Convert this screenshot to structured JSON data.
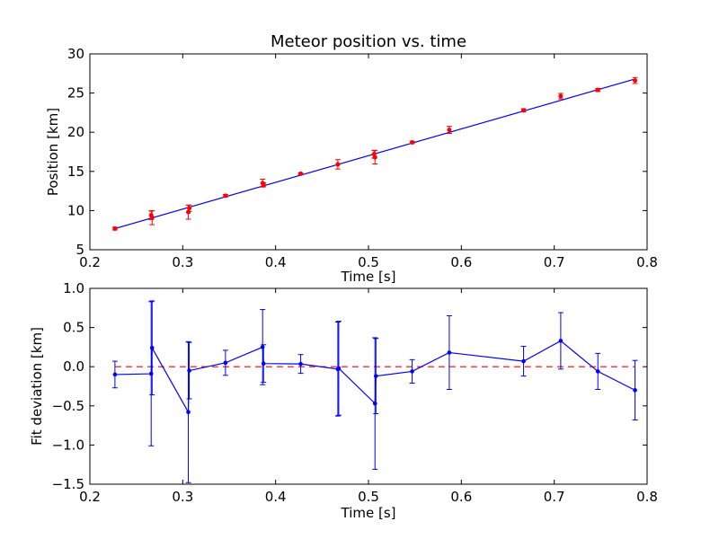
{
  "chart_data": [
    {
      "type": "scatter",
      "title": "Meteor position vs. time",
      "xlabel": "Time [s]",
      "ylabel": "Position [km]",
      "xlim": [
        0.2,
        0.8
      ],
      "ylim": [
        5,
        30
      ],
      "xticks": [
        "0.2",
        "0.3",
        "0.4",
        "0.5",
        "0.6",
        "0.7",
        "0.8"
      ],
      "yticks": [
        "5",
        "10",
        "15",
        "20",
        "25",
        "30"
      ],
      "series": [
        {
          "kind": "fit-line",
          "color": "#0000ff",
          "x": [
            0.227,
            0.787
          ],
          "y": [
            7.7,
            26.8
          ]
        },
        {
          "kind": "points-with-errorbars",
          "color": "#ff0000",
          "x": [
            0.227,
            0.266,
            0.267,
            0.306,
            0.307,
            0.346,
            0.386,
            0.387,
            0.427,
            0.467,
            0.506,
            0.507,
            0.547,
            0.587,
            0.667,
            0.707,
            0.747,
            0.787
          ],
          "y": [
            7.7,
            9.4,
            9.1,
            9.8,
            10.3,
            11.9,
            13.5,
            13.3,
            14.7,
            15.9,
            17.2,
            16.8,
            18.7,
            20.3,
            22.8,
            24.6,
            25.4,
            26.6
          ],
          "yerr": [
            0.18,
            0.55,
            0.9,
            0.9,
            0.4,
            0.15,
            0.5,
            0.25,
            0.12,
            0.6,
            0.5,
            0.85,
            0.15,
            0.45,
            0.2,
            0.35,
            0.2,
            0.38
          ]
        }
      ]
    },
    {
      "type": "line",
      "xlabel": "Time [s]",
      "ylabel": "Fit deviation [km]",
      "xlim": [
        0.2,
        0.8
      ],
      "ylim": [
        -1.5,
        1.0
      ],
      "xticks": [
        "0.2",
        "0.3",
        "0.4",
        "0.5",
        "0.6",
        "0.7",
        "0.8"
      ],
      "yticks": [
        "−1.5",
        "−1.0",
        "−0.5",
        "0.0",
        "0.5",
        "1.0"
      ],
      "zero_line": {
        "y": 0.0,
        "color": "#ff0000",
        "style": "dashed"
      },
      "series": [
        {
          "color": "#0000ff",
          "x": [
            0.227,
            0.266,
            0.267,
            0.306,
            0.307,
            0.346,
            0.386,
            0.387,
            0.427,
            0.467,
            0.468,
            0.507,
            0.508,
            0.547,
            0.587,
            0.667,
            0.707,
            0.747,
            0.787
          ],
          "y": [
            -0.1,
            -0.09,
            0.24,
            -0.58,
            -0.05,
            0.05,
            0.25,
            0.04,
            0.035,
            -0.03,
            -0.02,
            -0.47,
            -0.12,
            -0.06,
            0.18,
            0.07,
            0.33,
            -0.06,
            -0.3
          ],
          "yerr": [
            0.17,
            0.92,
            0.6,
            0.9,
            0.36,
            0.16,
            0.48,
            0.24,
            0.12,
            0.6,
            0.6,
            0.84,
            0.48,
            0.15,
            0.47,
            0.19,
            0.36,
            0.23,
            0.38
          ]
        }
      ]
    }
  ]
}
